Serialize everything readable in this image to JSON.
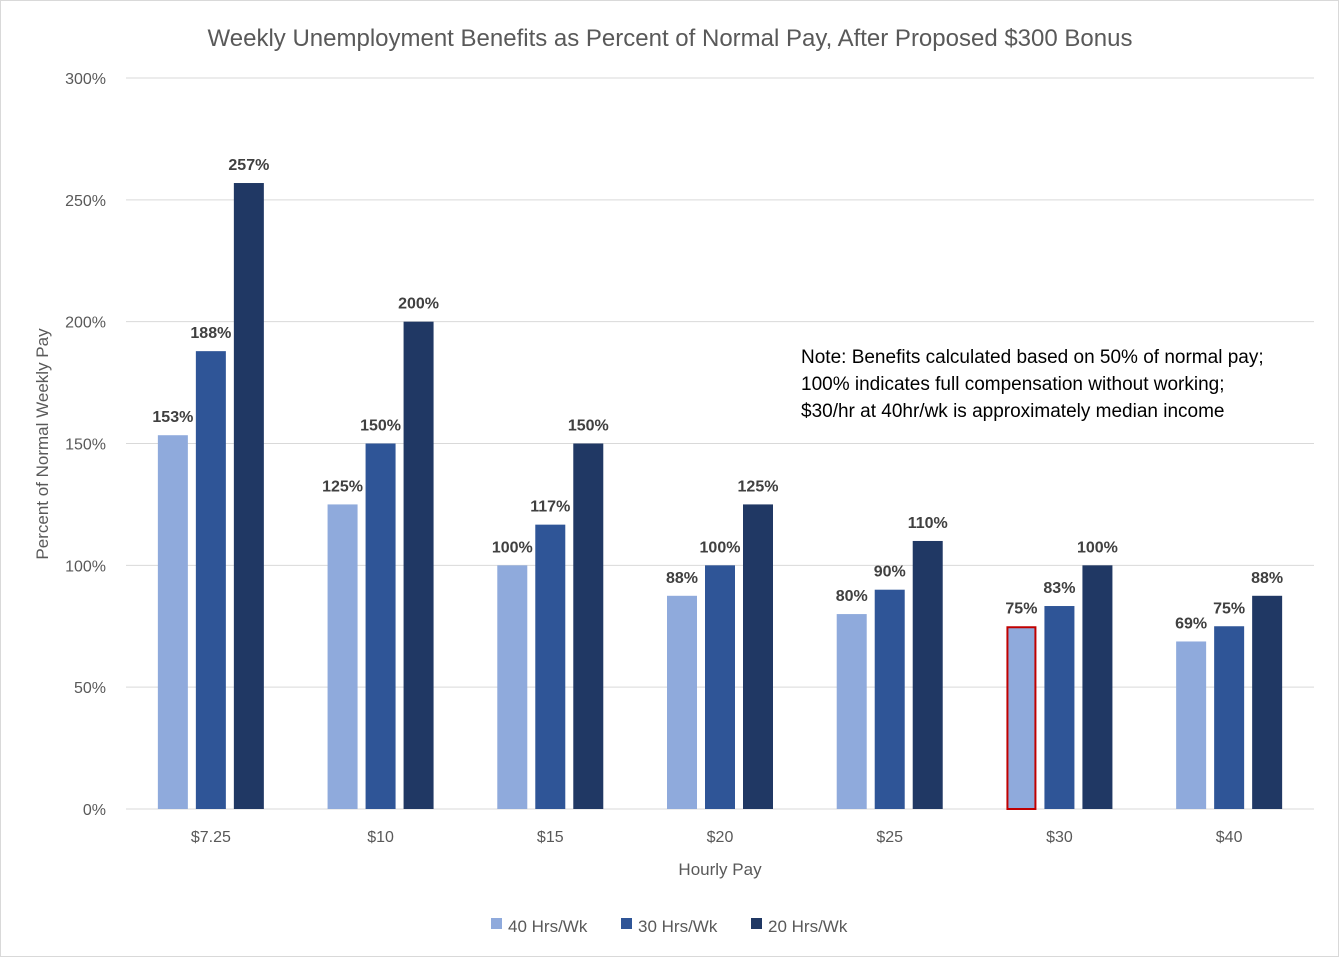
{
  "chart_data": {
    "type": "bar",
    "title": "Weekly Unemployment Benefits as Percent of Normal Pay, After Proposed $300 Bonus",
    "xlabel": "Hourly Pay",
    "ylabel": "Percent of Normal Weekly Pay",
    "ylim": [
      0,
      300
    ],
    "yticks": [
      "0%",
      "50%",
      "100%",
      "150%",
      "200%",
      "250%",
      "300%"
    ],
    "grid": true,
    "legend_position": "bottom",
    "categories": [
      "$7.25",
      "$10",
      "$15",
      "$20",
      "$25",
      "$30",
      "$40"
    ],
    "series": [
      {
        "name": "40 Hrs/Wk",
        "color": "#8faadc",
        "values": [
          153.4,
          125,
          100,
          87.5,
          80,
          75,
          68.75
        ],
        "labels": [
          "153%",
          "125%",
          "100%",
          "88%",
          "80%",
          "75%",
          "69%"
        ]
      },
      {
        "name": "30 Hrs/Wk",
        "color": "#2f5597",
        "values": [
          187.9,
          150,
          116.7,
          100,
          90,
          83.3,
          75
        ],
        "labels": [
          "188%",
          "150%",
          "117%",
          "100%",
          "90%",
          "83%",
          "75%"
        ]
      },
      {
        "name": "20 Hrs/Wk",
        "color": "#203864",
        "values": [
          256.9,
          200,
          150,
          125,
          110,
          100,
          87.5
        ],
        "labels": [
          "257%",
          "200%",
          "150%",
          "125%",
          "110%",
          "100%",
          "88%"
        ]
      }
    ],
    "highlight": {
      "series": 0,
      "category": 5,
      "outline_color": "#c00000"
    },
    "annotation": [
      "Note: Benefits calculated based on 50% of normal pay;",
      "100% indicates full compensation without working;",
      "$30/hr at 40hr/wk is approximately median income"
    ],
    "gridline_color": "#d9d9d9"
  }
}
